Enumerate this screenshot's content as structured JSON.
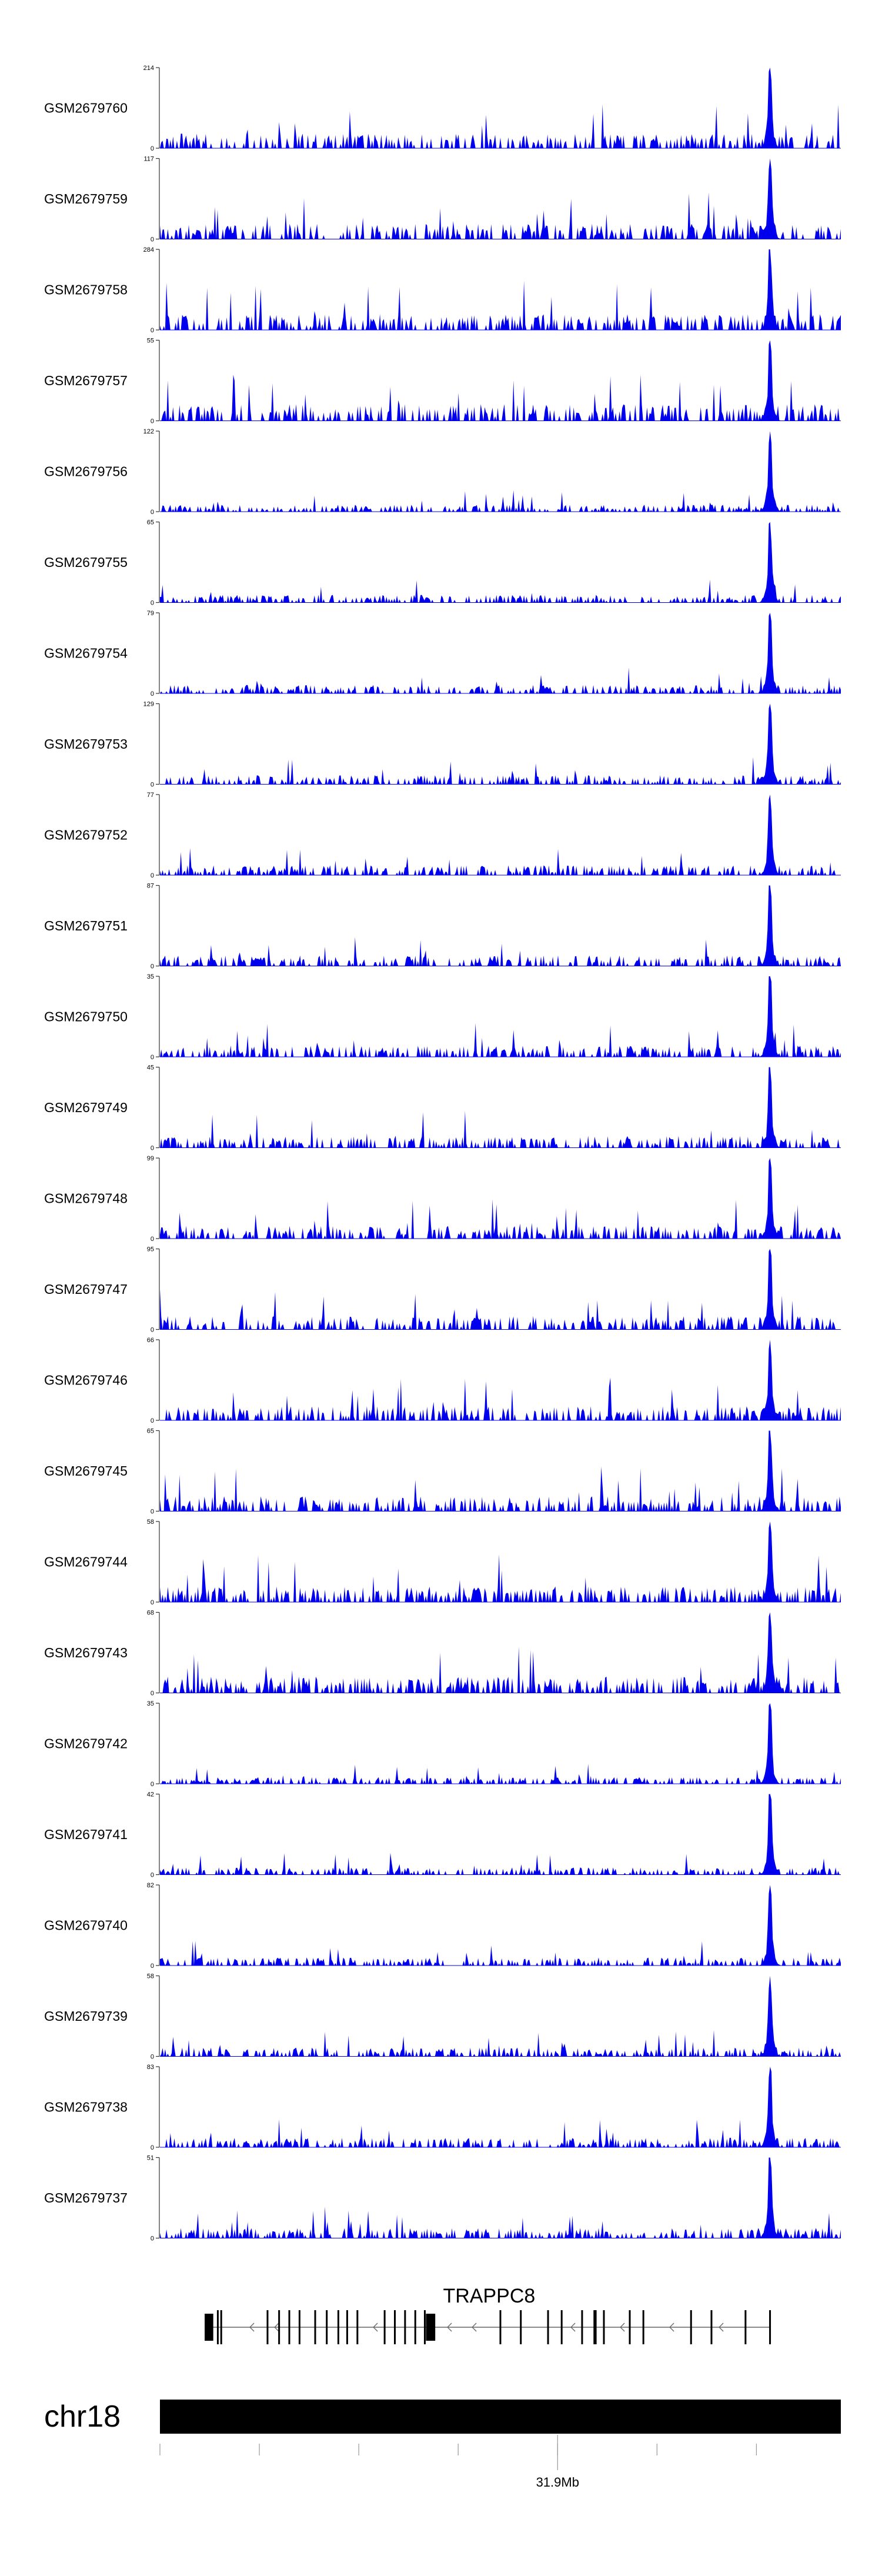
{
  "chart_data": {
    "type": "area",
    "title": "",
    "description": "Genome browser coverage tracks (blue filled area) for 24 samples, with gene annotation and chromosome ideogram",
    "color": "#0000ee",
    "tracks": [
      {
        "name": "GSM2679760",
        "max": "214",
        "min": "0",
        "peak_frac": 1.0
      },
      {
        "name": "GSM2679759",
        "max": "117",
        "min": "0",
        "peak_frac": 0.95
      },
      {
        "name": "GSM2679758",
        "max": "284",
        "min": "0",
        "peak_frac": 1.0
      },
      {
        "name": "GSM2679757",
        "max": "55",
        "min": "0",
        "peak_frac": 0.95
      },
      {
        "name": "GSM2679756",
        "max": "122",
        "min": "0",
        "peak_frac": 0.95
      },
      {
        "name": "GSM2679755",
        "max": "65",
        "min": "0",
        "peak_frac": 1.0
      },
      {
        "name": "GSM2679754",
        "max": "79",
        "min": "0",
        "peak_frac": 0.95
      },
      {
        "name": "GSM2679753",
        "max": "129",
        "min": "0",
        "peak_frac": 1.0
      },
      {
        "name": "GSM2679752",
        "max": "77",
        "min": "0",
        "peak_frac": 1.0
      },
      {
        "name": "GSM2679751",
        "max": "87",
        "min": "0",
        "peak_frac": 1.0
      },
      {
        "name": "GSM2679750",
        "max": "35",
        "min": "0",
        "peak_frac": 1.0
      },
      {
        "name": "GSM2679749",
        "max": "45",
        "min": "0",
        "peak_frac": 1.0
      },
      {
        "name": "GSM2679748",
        "max": "99",
        "min": "0",
        "peak_frac": 1.0
      },
      {
        "name": "GSM2679747",
        "max": "95",
        "min": "0",
        "peak_frac": 1.0
      },
      {
        "name": "GSM2679746",
        "max": "66",
        "min": "0",
        "peak_frac": 1.0
      },
      {
        "name": "GSM2679745",
        "max": "65",
        "min": "0",
        "peak_frac": 1.0
      },
      {
        "name": "GSM2679744",
        "max": "58",
        "min": "0",
        "peak_frac": 1.0
      },
      {
        "name": "GSM2679743",
        "max": "68",
        "min": "0",
        "peak_frac": 1.0
      },
      {
        "name": "GSM2679742",
        "max": "35",
        "min": "0",
        "peak_frac": 1.0
      },
      {
        "name": "GSM2679741",
        "max": "42",
        "min": "0",
        "peak_frac": 1.0
      },
      {
        "name": "GSM2679740",
        "max": "82",
        "min": "0",
        "peak_frac": 1.0
      },
      {
        "name": "GSM2679739",
        "max": "58",
        "min": "0",
        "peak_frac": 1.0
      },
      {
        "name": "GSM2679738",
        "max": "83",
        "min": "0",
        "peak_frac": 1.0
      },
      {
        "name": "GSM2679737",
        "max": "51",
        "min": "0",
        "peak_frac": 1.0
      }
    ],
    "peak_position_frac": 0.896,
    "gene": {
      "name": "TRAPPC8",
      "strand": "-",
      "start_frac": 0.07,
      "end_frac": 0.897,
      "exon_fracs": [
        0.07,
        0.074,
        0.085,
        0.09,
        0.158,
        0.175,
        0.19,
        0.205,
        0.228,
        0.245,
        0.262,
        0.275,
        0.29,
        0.33,
        0.345,
        0.36,
        0.375,
        0.389,
        0.395,
        0.4,
        0.5,
        0.53,
        0.57,
        0.59,
        0.62,
        0.638,
        0.64,
        0.652,
        0.69,
        0.71,
        0.78,
        0.81,
        0.86,
        0.896
      ]
    },
    "ideogram": {
      "chromosome": "chr18",
      "tick_fracs": [
        0.0,
        0.146,
        0.292,
        0.438,
        0.584,
        0.73,
        0.876
      ],
      "major_tick_frac": 0.584,
      "major_tick_label": "31.9Mb"
    }
  }
}
